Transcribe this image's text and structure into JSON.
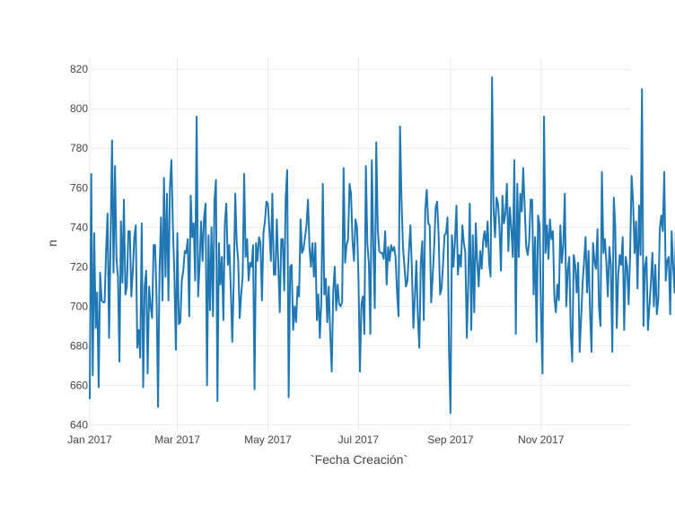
{
  "chart_data": {
    "type": "line",
    "xlabel": "`Fecha Creación`",
    "ylabel": "n",
    "x_start": "2017-01-01",
    "x_end": "2017-12-31",
    "xlim": [
      "2017-01-01",
      "2017-12-31"
    ],
    "ylim": [
      637,
      826
    ],
    "grid": true,
    "line_color": "#1f77b4",
    "y_ticks": [
      640,
      660,
      680,
      700,
      720,
      740,
      760,
      780,
      800,
      820
    ],
    "x_ticks": [
      {
        "date": "2017-01-01",
        "label": "Jan 2017"
      },
      {
        "date": "2017-03-01",
        "label": "Mar 2017"
      },
      {
        "date": "2017-05-01",
        "label": "May 2017"
      },
      {
        "date": "2017-07-01",
        "label": "Jul 2017"
      },
      {
        "date": "2017-09-01",
        "label": "Sep 2017"
      },
      {
        "date": "2017-11-01",
        "label": "Nov 2017"
      }
    ],
    "series": [
      {
        "values": [
          653,
          767,
          665,
          737,
          689,
          707,
          659,
          717,
          703,
          702,
          702,
          728,
          747,
          684,
          733,
          784,
          717,
          771,
          724,
          715,
          672,
          743,
          712,
          754,
          706,
          710,
          738,
          738,
          705,
          718,
          735,
          741,
          679,
          688,
          674,
          742,
          659,
          710,
          718,
          666,
          710,
          700,
          694,
          731,
          731,
          705,
          649,
          718,
          745,
          703,
          765,
          715,
          757,
          703,
          760,
          774,
          740,
          716,
          678,
          737,
          691,
          692,
          713,
          718,
          728,
          727,
          734,
          695,
          756,
          735,
          742,
          713,
          796,
          705,
          721,
          743,
          723,
          745,
          752,
          660,
          736,
          698,
          740,
          695,
          753,
          764,
          652,
          732,
          711,
          725,
          693,
          742,
          752,
          721,
          731,
          709,
          682,
          713,
          757,
          732,
          723,
          694,
          706,
          715,
          767,
          725,
          734,
          713,
          722,
          720,
          731,
          658,
          732,
          723,
          735,
          732,
          703,
          737,
          743,
          753,
          752,
          739,
          723,
          757,
          716,
          716,
          744,
          721,
          697,
          734,
          734,
          708,
          755,
          769,
          654,
          720,
          721,
          688,
          700,
          692,
          710,
          705,
          744,
          727,
          729,
          735,
          741,
          754,
          730,
          720,
          732,
          715,
          732,
          693,
          706,
          684,
          703,
          762,
          706,
          714,
          692,
          710,
          686,
          667,
          707,
          720,
          698,
          711,
          701,
          700,
          702,
          770,
          722,
          731,
          734,
          762,
          757,
          733,
          723,
          744,
          740,
          715,
          667,
          701,
          705,
          686,
          771,
          732,
          722,
          686,
          774,
          731,
          699,
          783,
          739,
          728,
          727,
          727,
          724,
          738,
          711,
          730,
          723,
          731,
          728,
          730,
          725,
          707,
          695,
          791,
          754,
          730,
          720,
          710,
          713,
          728,
          741,
          719,
          689,
          705,
          723,
          695,
          679,
          722,
          733,
          693,
          749,
          759,
          742,
          741,
          702,
          715,
          730,
          750,
          753,
          736,
          706,
          709,
          722,
          736,
          737,
          745,
          678,
          646,
          736,
          720,
          733,
          751,
          716,
          726,
          720,
          741,
          732,
          727,
          684,
          712,
          752,
          688,
          736,
          697,
          742,
          723,
          710,
          728,
          719,
          733,
          738,
          730,
          743,
          722,
          715,
          816,
          749,
          735,
          755,
          752,
          740,
          718,
          756,
          742,
          747,
          762,
          728,
          750,
          739,
          725,
          774,
          686,
          762,
          725,
          757,
          748,
          770,
          750,
          730,
          726,
          733,
          754,
          754,
          706,
          735,
          682,
          746,
          741,
          696,
          666,
          796,
          727,
          741,
          724,
          744,
          734,
          738,
          704,
          697,
          711,
          703,
          741,
          722,
          731,
          757,
          700,
          718,
          725,
          687,
          672,
          726,
          721,
          707,
          722,
          677,
          694,
          712,
          723,
          735,
          707,
          728,
          697,
          677,
          732,
          723,
          719,
          739,
          700,
          690,
          768,
          727,
          734,
          722,
          705,
          730,
          721,
          677,
          755,
          740,
          689,
          716,
          726,
          721,
          735,
          688,
          725,
          720,
          701,
          726,
          766,
          753,
          727,
          743,
          709,
          751,
          726,
          810,
          690,
          720,
          725,
          688,
          700,
          712,
          727,
          700,
          721,
          696,
          704,
          739,
          746,
          738,
          768,
          713,
          723,
          725,
          696,
          738,
          720,
          707,
          749,
          705,
          684,
          731,
          746,
          706,
          723,
          735,
          726,
          665,
          737
        ]
      }
    ]
  }
}
